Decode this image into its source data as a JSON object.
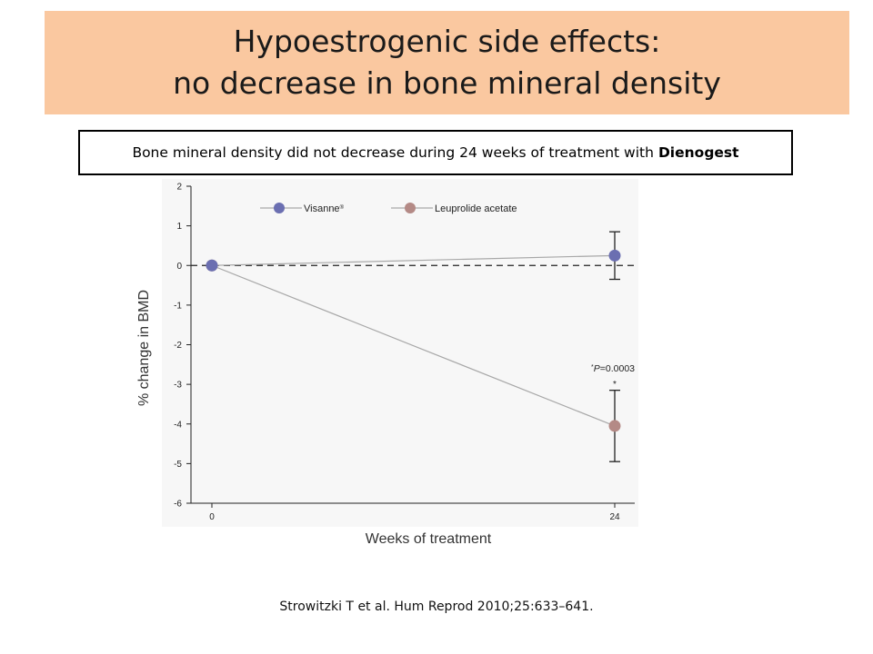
{
  "slide": {
    "title_line1": "Hypoestrogenic side effects:",
    "title_line2": "no decrease in bone mineral density",
    "subtitle_main": "Bone mineral density did not decrease during 24 weeks of treatment with",
    "subtitle_bold": "Dienogest",
    "citation": "Strowitzki T et al. Hum Reprod 2010;25:633–641."
  },
  "colors": {
    "title_band": "#fac8a0",
    "visanne": "#6b6fb1",
    "leuprolide": "#b48a86"
  },
  "chart_data": {
    "type": "line",
    "title": "",
    "xlabel": "Weeks of treatment",
    "ylabel": "% change in BMD",
    "x": [
      0,
      24
    ],
    "x_ticks": [
      "0",
      "24"
    ],
    "y_ticks": [
      "2",
      "1",
      "0",
      "-1",
      "-2",
      "-3",
      "-4",
      "-5",
      "-6"
    ],
    "ylim": [
      -6,
      2
    ],
    "reference_line": 0,
    "legend_position": "top-left",
    "series": [
      {
        "name": "Visanne",
        "name_superscript": "®",
        "values": [
          0,
          0.25
        ],
        "error_low": [
          null,
          -0.35
        ],
        "error_high": [
          null,
          0.85
        ],
        "color": "#6b6fb1"
      },
      {
        "name": "Leuprolide acetate",
        "values": [
          0,
          -4.05
        ],
        "error_low": [
          null,
          -4.95
        ],
        "error_high": [
          null,
          -3.15
        ],
        "color": "#b48a86"
      }
    ],
    "annotations": {
      "pvalue_prefix": "*",
      "pvalue_var": "P",
      "pvalue_rest": "=0.0003",
      "star": "*"
    }
  }
}
